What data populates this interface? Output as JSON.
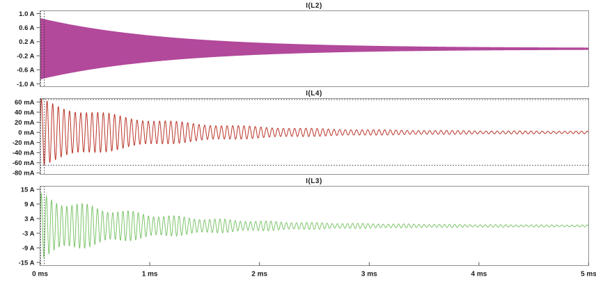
{
  "frame_color": "#909090",
  "text_color": "#1c1c1c",
  "cursor_color": "#2b2b2b",
  "x_axis": {
    "range_ms": [
      0,
      5
    ],
    "ticks": [
      {
        "v": 0,
        "label": "0 ms"
      },
      {
        "v": 1,
        "label": "1 ms"
      },
      {
        "v": 2,
        "label": "2 ms"
      },
      {
        "v": 3,
        "label": "3 ms"
      },
      {
        "v": 4,
        "label": "4 ms"
      },
      {
        "v": 5,
        "label": "5 ms"
      }
    ]
  },
  "chart_data": [
    {
      "type": "line",
      "id": "IL2",
      "title": "I(L2)",
      "color": "#b2499b",
      "ylabel_unit": "A",
      "ylim": [
        -1.08,
        1.08
      ],
      "yticks": [
        {
          "v": 1.0,
          "label": "1.0 A"
        },
        {
          "v": 0.6,
          "label": "0.6 A"
        },
        {
          "v": 0.2,
          "label": "0.2 A"
        },
        {
          "v": -0.2,
          "label": "-0.2 A"
        },
        {
          "v": -0.6,
          "label": "-0.6 A"
        },
        {
          "v": -1.0,
          "label": "-1.0 A"
        }
      ],
      "waveform": {
        "kind": "dense_damped_sine",
        "a0": 0.85,
        "tau_ms": 1.15,
        "floor": 0.012,
        "settles_to": 0
      },
      "cursors_x_ms": [
        0.006,
        0.038
      ],
      "grid": false,
      "legend": false
    },
    {
      "type": "line",
      "id": "IL4",
      "title": "I(L4)",
      "color": "#b93226",
      "ylabel_unit": "mA",
      "ylim": [
        -83,
        67
      ],
      "yticks": [
        {
          "v": 60,
          "label": "60 mA"
        },
        {
          "v": 40,
          "label": "40 mA"
        },
        {
          "v": 20,
          "label": "20 mA"
        },
        {
          "v": 0,
          "label": "0 mA"
        },
        {
          "v": -20,
          "label": "-20 mA"
        },
        {
          "v": -40,
          "label": "-40 mA"
        },
        {
          "v": -60,
          "label": "-60 mA"
        },
        {
          "v": -80,
          "label": "-80 mA"
        }
      ],
      "waveform": {
        "kind": "damped_sine",
        "a0": 65,
        "tau_ms": 1.05,
        "floor": 2,
        "freq_cycles_per_ms": 19.5,
        "beat": {
          "khz": 1.6,
          "depth": 0.1
        },
        "settles_to": 0
      },
      "envelope_dotted_lines": [
        65,
        -65
      ],
      "cursors_x_ms": [
        0.006,
        0.038
      ],
      "grid": false,
      "legend": false
    },
    {
      "type": "line",
      "id": "IL3",
      "title": "I(L3)",
      "color": "#7cc46a",
      "ylabel_unit": "A",
      "ylim": [
        -16.3,
        16.3
      ],
      "yticks": [
        {
          "v": 15,
          "label": "15 A"
        },
        {
          "v": 9,
          "label": "9 A"
        },
        {
          "v": 3,
          "label": "3 A"
        },
        {
          "v": -3,
          "label": "-3 A"
        },
        {
          "v": -9,
          "label": "-9 A"
        },
        {
          "v": -15,
          "label": "-15 A"
        }
      ],
      "waveform": {
        "kind": "damped_sine",
        "a0": 13.2,
        "tau_ms": 1.0,
        "floor": 0.35,
        "freq_cycles_per_ms": 21.5,
        "beat": {
          "khz": 2.4,
          "depth": 0.13
        },
        "settles_to": 0
      },
      "cursors_x_ms": [
        0.006,
        0.038
      ],
      "show_x_labels": true,
      "grid": false,
      "legend": false
    }
  ]
}
